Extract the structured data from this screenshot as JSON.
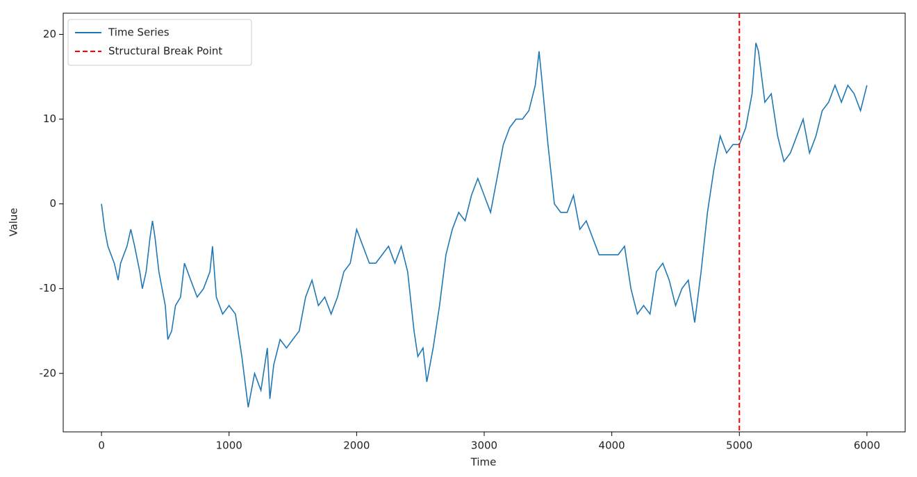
{
  "chart_data": {
    "type": "line",
    "x_label": "Time",
    "y_label": "Value",
    "x": [
      0,
      25,
      50,
      100,
      130,
      150,
      200,
      230,
      260,
      300,
      320,
      350,
      380,
      400,
      420,
      450,
      500,
      520,
      550,
      580,
      620,
      650,
      700,
      750,
      800,
      850,
      870,
      900,
      950,
      1000,
      1050,
      1100,
      1150,
      1200,
      1250,
      1300,
      1320,
      1350,
      1400,
      1450,
      1500,
      1550,
      1600,
      1650,
      1700,
      1750,
      1800,
      1850,
      1900,
      1950,
      2000,
      2050,
      2100,
      2150,
      2200,
      2250,
      2300,
      2350,
      2400,
      2450,
      2480,
      2520,
      2550,
      2600,
      2650,
      2700,
      2750,
      2800,
      2850,
      2900,
      2950,
      3000,
      3050,
      3100,
      3150,
      3200,
      3250,
      3300,
      3350,
      3400,
      3430,
      3450,
      3500,
      3550,
      3600,
      3650,
      3700,
      3750,
      3800,
      3850,
      3900,
      3950,
      4000,
      4050,
      4100,
      4150,
      4200,
      4250,
      4300,
      4350,
      4400,
      4450,
      4500,
      4550,
      4600,
      4650,
      4700,
      4750,
      4800,
      4850,
      4900,
      4950,
      5000,
      5050,
      5100,
      5130,
      5150,
      5200,
      5250,
      5300,
      5350,
      5400,
      5450,
      5500,
      5550,
      5600,
      5650,
      5700,
      5750,
      5800,
      5850,
      5900,
      5950,
      6000
    ],
    "series": [
      {
        "name": "Time Series",
        "color": "#1f77b4",
        "values": [
          0,
          -3,
          -5,
          -7,
          -9,
          -7,
          -5,
          -3,
          -5,
          -8,
          -10,
          -8,
          -4,
          -2,
          -4,
          -8,
          -12,
          -16,
          -15,
          -12,
          -11,
          -7,
          -9,
          -11,
          -10,
          -8,
          -5,
          -11,
          -13,
          -12,
          -13,
          -18,
          -24,
          -20,
          -22,
          -17,
          -23,
          -19,
          -16,
          -17,
          -16,
          -15,
          -11,
          -9,
          -12,
          -11,
          -13,
          -11,
          -8,
          -7,
          -3,
          -5,
          -7,
          -7,
          -6,
          -5,
          -7,
          -5,
          -8,
          -15,
          -18,
          -17,
          -21,
          -17,
          -12,
          -6,
          -3,
          -1,
          -2,
          1,
          3,
          1,
          -1,
          3,
          7,
          9,
          10,
          10,
          11,
          14,
          18,
          15,
          7,
          0,
          -1,
          -1,
          1,
          -3,
          -2,
          -4,
          -6,
          -6,
          -6,
          -6,
          -5,
          -10,
          -13,
          -12,
          -13,
          -8,
          -7,
          -9,
          -12,
          -10,
          -9,
          -14,
          -8,
          -1,
          4,
          8,
          6,
          7,
          7,
          9,
          13,
          19,
          18,
          12,
          13,
          8,
          5,
          6,
          8,
          10,
          6,
          8,
          11,
          12,
          14,
          12,
          14,
          13,
          11,
          14
        ]
      }
    ],
    "vlines": [
      {
        "name": "Structural Break Point",
        "color": "#ff0000",
        "x": 5000
      }
    ],
    "xlim": [
      -300,
      6300
    ],
    "ylim": [
      -26.9,
      22.5
    ],
    "xticks": [
      0,
      1000,
      2000,
      3000,
      4000,
      5000,
      6000
    ],
    "yticks": [
      -20,
      -10,
      0,
      10,
      20
    ],
    "grid": false,
    "legend": "upper left"
  }
}
